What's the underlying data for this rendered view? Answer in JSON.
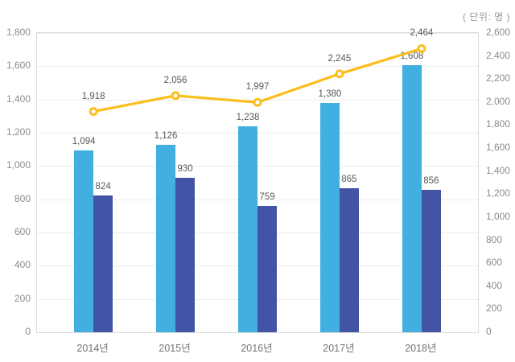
{
  "header": {
    "unit_label": "( 단위: 명 )"
  },
  "chart_data": {
    "type": "bar",
    "subtype": "grouped-bars-with-line-combo",
    "title": "",
    "xlabel": "",
    "ylabel": "",
    "legend": "none",
    "grid": "horizontal",
    "categories": [
      "2014년",
      "2015년",
      "2016년",
      "2017년",
      "2018년"
    ],
    "series": [
      {
        "id": "bar-light-blue",
        "type": "bar",
        "axis": "left",
        "color": "#41afe0",
        "values": [
          1094,
          1126,
          1238,
          1380,
          1608
        ],
        "labels": [
          "1,094",
          "1,126",
          "1,238",
          "1,380",
          "1,608"
        ]
      },
      {
        "id": "bar-dark-blue",
        "type": "bar",
        "axis": "left",
        "color": "#4353a5",
        "values": [
          824,
          930,
          759,
          865,
          856
        ],
        "labels": [
          "824",
          "930",
          "759",
          "865",
          "856"
        ]
      },
      {
        "id": "line-yellow",
        "type": "line",
        "axis": "right",
        "color": "#fcbe1e",
        "values": [
          1918,
          2056,
          1997,
          2245,
          2464
        ],
        "labels": [
          "1,918",
          "2,056",
          "1,997",
          "2,245",
          "2,464"
        ]
      }
    ],
    "left_axis": {
      "min": 0,
      "max": 1800,
      "step": 200,
      "tick_labels": [
        "0",
        "200",
        "400",
        "600",
        "800",
        "1,000",
        "1,200",
        "1,400",
        "1,600",
        "1,800"
      ]
    },
    "right_axis": {
      "min": 0,
      "max": 2600,
      "step": 200,
      "tick_labels": [
        "0",
        "200",
        "400",
        "600",
        "800",
        "1,000",
        "1,200",
        "1,400",
        "1,600",
        "1,800",
        "2,000",
        "2,200",
        "2,400",
        "2,600"
      ]
    },
    "colors": {
      "grid": "#ececec",
      "plot_border": "#dcdcdc",
      "tick_text": "#8c8c8c",
      "data_label_text": "#595959",
      "category_text": "#757575",
      "unit_text": "#999999",
      "marker_fill": "#ffffff"
    }
  }
}
